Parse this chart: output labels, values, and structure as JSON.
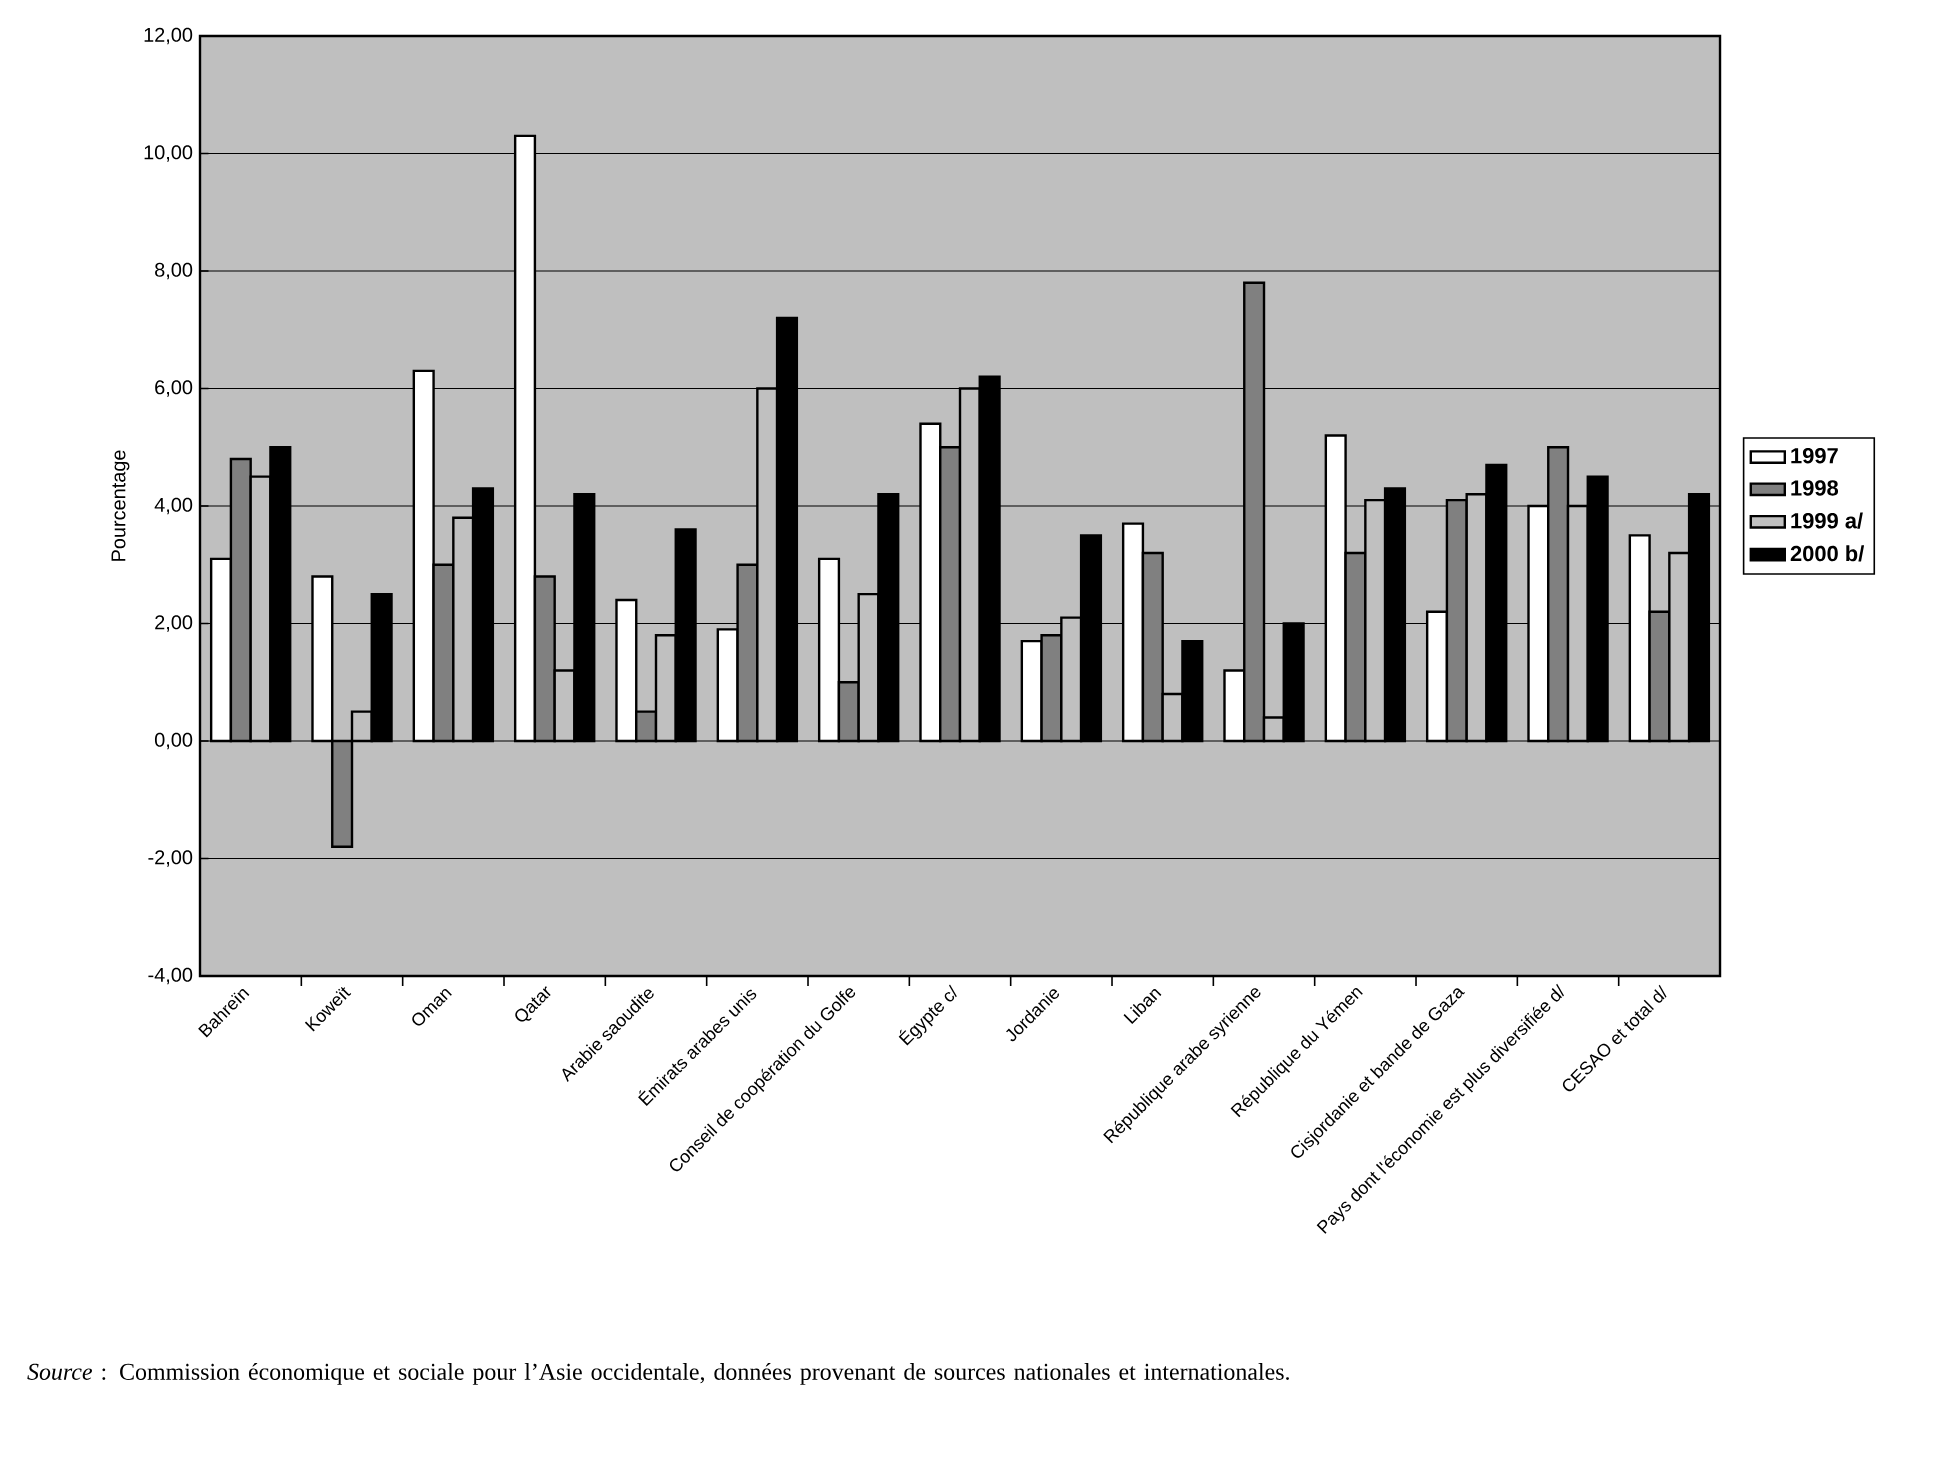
{
  "chart_data": {
    "type": "bar",
    "ylabel": "Pourcentage",
    "categories": [
      "Bahreïn",
      "Koweït",
      "Oman",
      "Qatar",
      "Arabie saoudite",
      "Émirats arabes unis",
      "Conseil de coopération du Golfe",
      "Égypte c/",
      "Jordanie",
      "Liban",
      "République arabe syrienne",
      "République du Yémen",
      "Cisjordanie et bande de Gaza",
      "Pays dont l'économie est plus diversifiée d/",
      "CESAO et total d/"
    ],
    "series": [
      {
        "name": "1997",
        "color": "#ffffff",
        "values": [
          3.1,
          2.8,
          6.3,
          10.3,
          2.4,
          1.9,
          3.1,
          5.4,
          1.7,
          3.7,
          1.2,
          5.2,
          2.2,
          4.0,
          3.5
        ]
      },
      {
        "name": "1998",
        "color": "#808080",
        "values": [
          4.8,
          -1.8,
          3.0,
          2.8,
          0.5,
          3.0,
          1.0,
          5.0,
          1.8,
          3.2,
          7.8,
          3.2,
          4.1,
          5.0,
          2.2
        ]
      },
      {
        "name": "1999 a/",
        "color": "#c0c0c0",
        "values": [
          4.5,
          0.5,
          3.8,
          1.2,
          1.8,
          6.0,
          2.5,
          6.0,
          2.1,
          0.8,
          0.4,
          4.1,
          4.2,
          4.0,
          3.2
        ]
      },
      {
        "name": "2000 b/",
        "color": "#000000",
        "values": [
          5.0,
          2.5,
          4.3,
          4.2,
          3.6,
          7.2,
          4.2,
          6.2,
          3.5,
          1.7,
          2.0,
          4.3,
          4.7,
          4.5,
          4.2
        ]
      }
    ],
    "ylim": [
      -4,
      12
    ],
    "yticks": [
      {
        "value": -4,
        "label": "-4,00"
      },
      {
        "value": -2,
        "label": "-2,00"
      },
      {
        "value": 0,
        "label": "0,00"
      },
      {
        "value": 2,
        "label": "2,00"
      },
      {
        "value": 4,
        "label": "4,00"
      },
      {
        "value": 6,
        "label": "6,00"
      },
      {
        "value": 8,
        "label": "8,00"
      },
      {
        "value": 10,
        "label": "10,00"
      },
      {
        "value": 12,
        "label": "12,00"
      }
    ],
    "grid": "y",
    "legend": "right",
    "annotations": [
      "*Source* : Commission économique et sociale pour l’Asie occidentale, données provenant de sources nationales et internationales."
    ]
  }
}
